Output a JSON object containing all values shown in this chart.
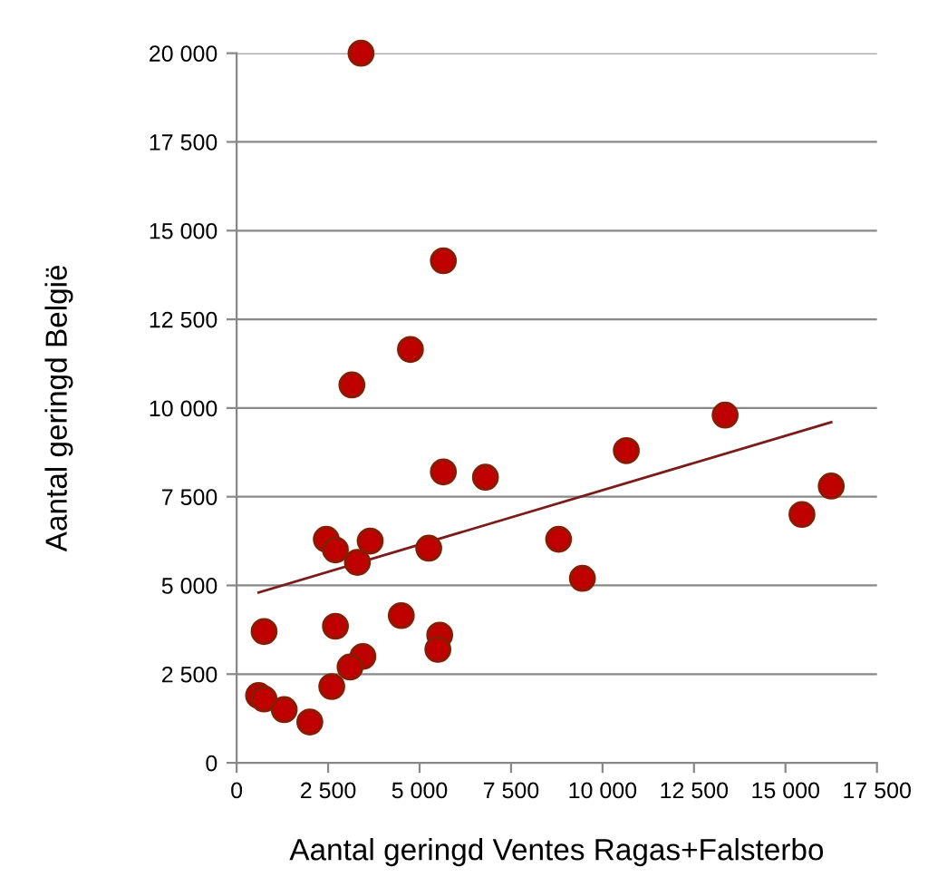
{
  "chart_data": {
    "type": "scatter",
    "xlabel": "Aantal geringd Ventes Ragas+Falsterbo",
    "ylabel": "Aantal geringd België",
    "x": [
      3400,
      5650,
      4750,
      3150,
      13350,
      10650,
      5650,
      6800,
      16250,
      15450,
      2450,
      2700,
      3650,
      5250,
      8800,
      3300,
      9450,
      4500,
      750,
      2700,
      5550,
      5500,
      3450,
      3100,
      2600,
      600,
      750,
      1300,
      2000
    ],
    "series": [
      {
        "color": "#c00000",
        "marker": "circle",
        "values": [
          20000,
          14150,
          11650,
          10650,
          9800,
          8800,
          8200,
          8050,
          7800,
          7000,
          6300,
          6000,
          6250,
          6050,
          6300,
          5650,
          5200,
          4150,
          3700,
          3850,
          3600,
          3200,
          3000,
          2700,
          2150,
          1900,
          1800,
          1500,
          1150
        ]
      },
      {
        "type": "line",
        "color": "#7b1c1c",
        "x": [
          600,
          16250
        ],
        "values": [
          4800,
          9600
        ]
      }
    ],
    "grid": "y",
    "legend": false,
    "xlim": [
      0,
      17500
    ],
    "ylim": [
      0,
      20000
    ],
    "xticks": [
      0,
      {
        "value": 2500,
        "label": "2 500"
      },
      {
        "value": 5000,
        "label": "5 000"
      },
      {
        "value": 7500,
        "label": "7 500"
      },
      {
        "value": 10000,
        "label": "10 000"
      },
      {
        "value": 12500,
        "label": "12 500"
      },
      {
        "value": 15000,
        "label": "15 000"
      },
      {
        "value": 17500,
        "label": "17 500"
      }
    ],
    "yticks": [
      0,
      {
        "value": 2500,
        "label": "2 500"
      },
      {
        "value": 5000,
        "label": "5 000"
      },
      {
        "value": 7500,
        "label": "7 500"
      },
      {
        "value": 10000,
        "label": "10 000"
      },
      {
        "value": 12500,
        "label": "12 500"
      },
      {
        "value": 15000,
        "label": "15 000"
      },
      {
        "value": 17500,
        "label": "17 500"
      },
      {
        "value": 20000,
        "label": "20 000"
      }
    ]
  }
}
